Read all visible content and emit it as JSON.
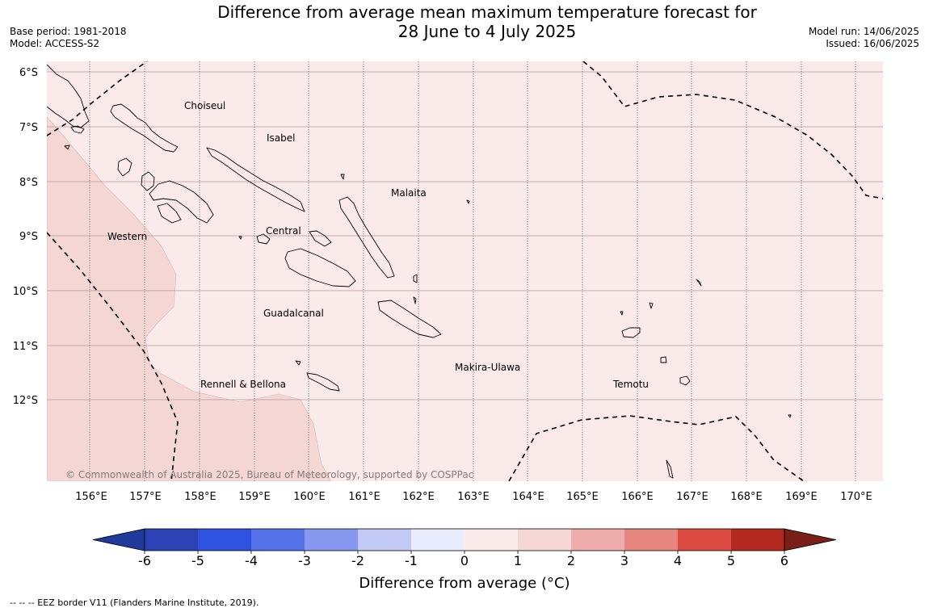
{
  "header": {
    "title_line1": "Difference from average mean maximum temperature forecast for",
    "title_line2": "28 June to 4 July 2025",
    "base_period": "Base period: 1981-2018",
    "model": "Model: ACCESS-S2",
    "model_run": "Model run: 14/06/2025",
    "issued": "Issued: 16/06/2025"
  },
  "map": {
    "lat_labels": [
      "6°S",
      "7°S",
      "8°S",
      "9°S",
      "10°S",
      "11°S",
      "12°S"
    ],
    "lon_labels": [
      "156°E",
      "157°E",
      "158°E",
      "159°E",
      "160°E",
      "161°E",
      "162°E",
      "163°E",
      "164°E",
      "165°E",
      "166°E",
      "167°E",
      "168°E",
      "169°E",
      "170°E"
    ],
    "regions": [
      "Choiseul",
      "Isabel",
      "Malaita",
      "Western",
      "Central",
      "Guadalcanal",
      "Makira-Ulawa",
      "Rennell & Bellona",
      "Temotu"
    ],
    "copyright": "© Commonwealth of Australia 2025, Bureau of Meteorology, supported by COSPPac",
    "colors": {
      "anomaly_0_1": "#fbeaea",
      "anomaly_1_2": "#f4d7d5",
      "border": "#000000"
    }
  },
  "colorbar": {
    "ticks": [
      "-6",
      "-5",
      "-4",
      "-3",
      "-2",
      "-1",
      "0",
      "1",
      "2",
      "3",
      "4",
      "5",
      "6"
    ],
    "colors": [
      "#1f3a9b",
      "#2b43b5",
      "#2f52e0",
      "#5571e8",
      "#8597ee",
      "#c1c9f4",
      "#e8ecfd",
      "#fbeaea",
      "#f4d7d5",
      "#eeadab",
      "#e7857f",
      "#db4b41",
      "#b3281f",
      "#7a1e18"
    ],
    "label": "Difference from average (°C)"
  },
  "footer": {
    "eez_note": "--  --  -- EEZ border V11 (Flanders Marine Institute, 2019)."
  }
}
